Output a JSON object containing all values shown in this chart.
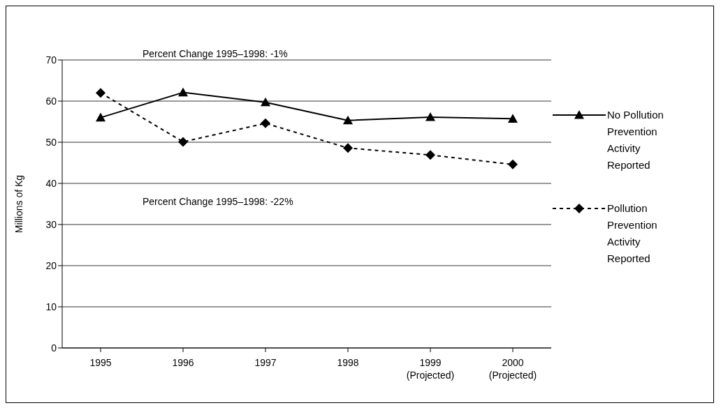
{
  "chart_data": {
    "type": "line",
    "ylabel": "Millions of Kg",
    "categories": [
      "1995",
      "1996",
      "1997",
      "1998",
      "1999\n(Projected)",
      "2000\n(Projected)"
    ],
    "series": [
      {
        "name": "No Pollution Prevention Activity Reported",
        "color": "#000000",
        "marker": "triangle",
        "line_style": "solid",
        "values": [
          56.0,
          62.1,
          59.7,
          55.3,
          56.1,
          55.7
        ]
      },
      {
        "name": "Pollution Prevention Activity Reported",
        "color": "#000000",
        "marker": "diamond",
        "line_style": "dashed",
        "values": [
          62.0,
          50.1,
          54.6,
          48.6,
          46.9,
          44.6
        ]
      }
    ],
    "ylim": [
      0,
      70
    ],
    "yticks": [
      0,
      10,
      20,
      30,
      40,
      50,
      60,
      70
    ],
    "grid": "y",
    "legend": "right",
    "annotations": [
      "Percent Change 1995–1998: -1%",
      "Percent Change 1995–1998: -22%"
    ]
  }
}
